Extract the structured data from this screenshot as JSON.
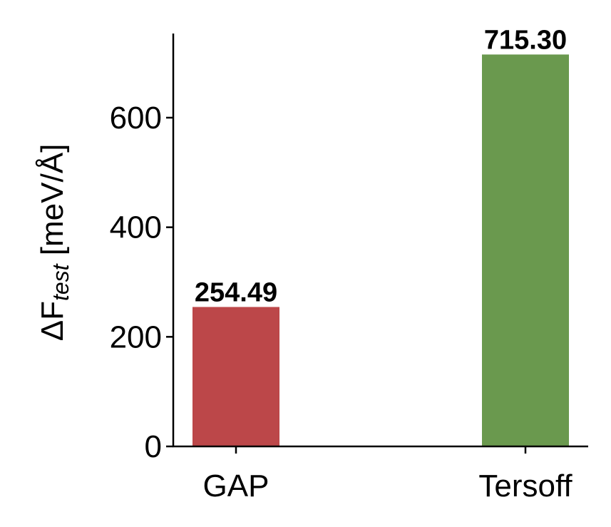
{
  "chart_data": {
    "type": "bar",
    "ylabel": [
      "ΔF",
      "test",
      " [meV/Å]"
    ],
    "categories": [
      "GAP",
      "Tersoff"
    ],
    "values": [
      254.49,
      715.3
    ],
    "value_labels": [
      "254.49",
      "715.30"
    ],
    "colors": [
      "#bc4749",
      "#6a994e"
    ],
    "ylim": [
      0,
      751
    ],
    "yticks": [
      0,
      200,
      400,
      600
    ],
    "grid": false
  }
}
